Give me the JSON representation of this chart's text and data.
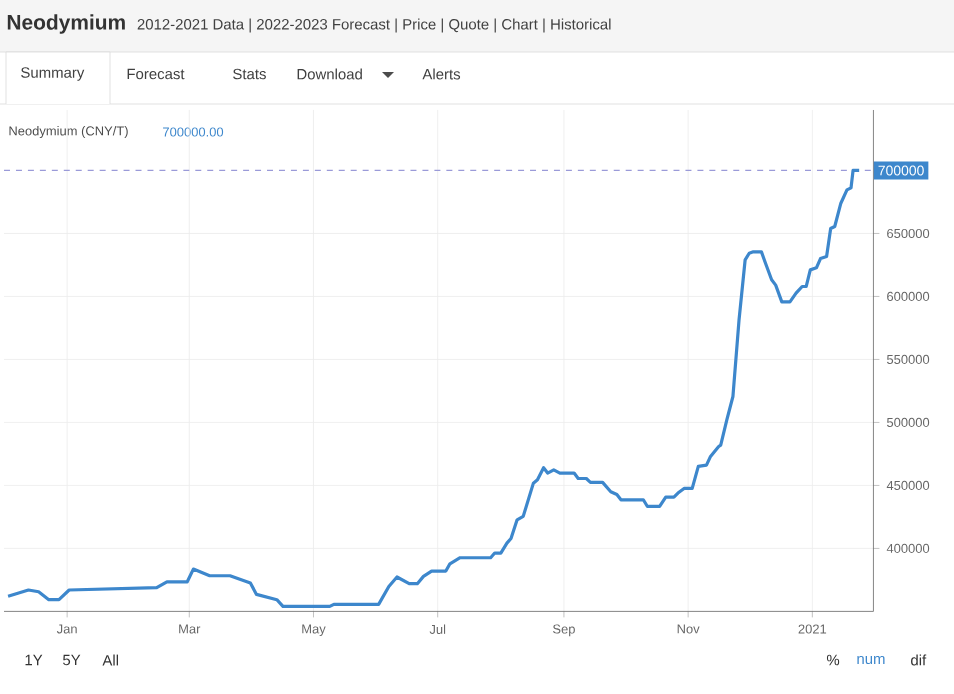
{
  "chart_data": {
    "type": "line",
    "title": "Neodymium",
    "subtitle": "2012-2021 Data | 2022-2023 Forecast | Price | Quote | Chart | Historical",
    "annotations": [
      "Summary",
      "Forecast",
      "Stats",
      "Download",
      "Alerts",
      "Neodymium (CNY/T)",
      "700000.00",
      "1Y",
      "5Y",
      "All",
      "%",
      "num",
      "dif"
    ],
    "x": [
      "2019-12-03",
      "2019-12-13",
      "2019-12-18",
      "2019-12-23",
      "2019-12-28",
      "2020-01-02",
      "2020-02-14",
      "2020-02-19",
      "2020-02-29",
      "2020-03-03",
      "2020-03-11",
      "2020-03-21",
      "2020-03-31",
      "2020-04-03",
      "2020-04-13",
      "2020-04-16",
      "2020-05-09",
      "2020-05-11",
      "2020-06-02",
      "2020-06-07",
      "2020-06-11",
      "2020-06-17",
      "2020-06-21",
      "2020-06-24",
      "2020-06-28",
      "2020-07-05",
      "2020-07-07",
      "2020-07-12",
      "2020-07-27",
      "2020-07-29",
      "2020-08-01",
      "2020-08-04",
      "2020-08-06",
      "2020-08-09",
      "2020-08-12",
      "2020-08-17",
      "2020-08-19",
      "2020-08-22",
      "2020-08-24",
      "2020-08-27",
      "2020-08-30",
      "2020-09-06",
      "2020-09-08",
      "2020-09-12",
      "2020-09-14",
      "2020-09-20",
      "2020-09-24",
      "2020-09-27",
      "2020-09-29",
      "2020-10-10",
      "2020-10-12",
      "2020-10-18",
      "2020-10-21",
      "2020-10-25",
      "2020-10-27",
      "2020-10-30",
      "2020-11-03",
      "2020-11-06",
      "2020-11-10",
      "2020-11-12",
      "2020-11-16",
      "2020-11-17",
      "2020-11-20",
      "2020-11-23",
      "2020-11-26",
      "2020-11-29",
      "2020-12-01",
      "2020-12-03",
      "2020-12-07",
      "2020-12-09",
      "2020-12-12",
      "2020-12-14",
      "2020-12-17",
      "2020-12-21",
      "2020-12-24",
      "2020-12-27",
      "2020-12-29",
      "2020-12-31",
      "2021-01-03",
      "2021-01-05",
      "2021-01-08",
      "2021-01-10",
      "2021-01-12",
      "2021-01-15",
      "2021-01-18",
      "2021-01-20",
      "2021-01-21",
      "2021-01-24"
    ],
    "series": [
      {
        "color": "#3d87cc",
        "values": [
          362000,
          367000,
          365600,
          359300,
          359300,
          367000,
          368800,
          373500,
          373500,
          383600,
          378300,
          378300,
          372500,
          363500,
          359300,
          354000,
          354000,
          355600,
          355600,
          369800,
          377300,
          372000,
          372000,
          377800,
          382000,
          382000,
          387800,
          392600,
          392600,
          396300,
          396300,
          404200,
          407900,
          422700,
          425400,
          451800,
          454500,
          464000,
          459800,
          462400,
          459800,
          459800,
          455500,
          455500,
          452400,
          452400,
          445000,
          442800,
          438600,
          438600,
          433300,
          433300,
          440700,
          440700,
          443900,
          447600,
          447600,
          465100,
          466100,
          473000,
          480900,
          482000,
          502100,
          520600,
          581400,
          629100,
          634300,
          635400,
          635400,
          626400,
          613200,
          609000,
          595700,
          595700,
          602600,
          607900,
          607900,
          621100,
          622700,
          630100,
          631700,
          653900,
          655500,
          674000,
          684600,
          686200,
          700000,
          700000
        ]
      }
    ],
    "xlim": [
      "2019-12-01",
      "2021-01-31"
    ],
    "xticks": [
      {
        "value": "2020-01-01",
        "label": "Jan"
      },
      {
        "value": "2020-03-01",
        "label": "Mar"
      },
      {
        "value": "2020-05-01",
        "label": "May"
      },
      {
        "value": "2020-07-01",
        "label": "Jul"
      },
      {
        "value": "2020-09-01",
        "label": "Sep"
      },
      {
        "value": "2020-11-01",
        "label": "Nov"
      },
      {
        "value": "2021-01-01",
        "label": "2021"
      }
    ],
    "ylim": [
      350000,
      748000
    ],
    "yticks": [
      400000,
      450000,
      500000,
      550000,
      600000,
      650000
    ],
    "ref_lines": [
      {
        "axis": "y",
        "value": 700000,
        "label": "700000",
        "color": "#9a9ad8",
        "line_style": "dashed"
      }
    ],
    "grid": true,
    "marker": "none",
    "line_style": "solid"
  }
}
